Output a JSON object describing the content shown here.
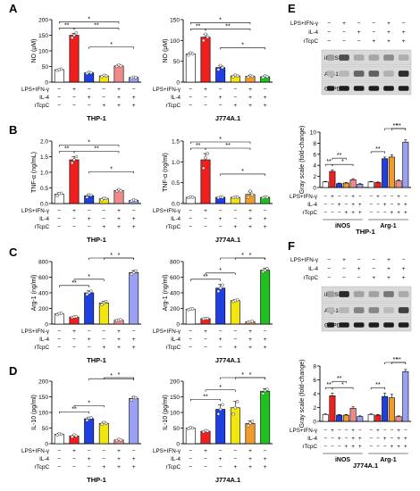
{
  "figure": {
    "colors": {
      "white": "#ffffff",
      "red": "#ef1f1f",
      "blue": "#1f3fe0",
      "yellow": "#f2e60f",
      "pink": "#f08a8a",
      "lightblue": "#5a78ea",
      "gold": "#f2bf0f",
      "green": "#20c020",
      "orange": "#f29a2a",
      "lavender": "#9aa0f4",
      "border": "#000000"
    },
    "pm": [
      "−",
      "+"
    ],
    "treatment_labels": [
      "LPS+IFN-γ",
      "IL-4",
      "rTcpC"
    ],
    "blot_labels": [
      "iNOS",
      "Arg-1",
      "GAPDH"
    ],
    "blot_ylabel": "Gray scale (fold-change)",
    "panels": [
      {
        "letter": "A"
      },
      {
        "letter": "B"
      },
      {
        "letter": "C"
      },
      {
        "letter": "D"
      },
      {
        "letter": "E",
        "cell": "THP-1",
        "group_labels": [
          "iNOS",
          "Arg-1"
        ]
      },
      {
        "letter": "F",
        "cell": "J774A.1",
        "group_labels": [
          "iNOS",
          "Arg-1"
        ]
      }
    ]
  },
  "chart_data": [
    {
      "panel": "A",
      "type": "bar",
      "cell": "THP-1",
      "palette": "thp",
      "ylabel": "NO (μM)",
      "ylim": [
        0,
        200
      ],
      "yticks": [
        0,
        50,
        100,
        150,
        200
      ],
      "values": [
        40,
        150,
        30,
        20,
        52,
        15
      ],
      "points": [
        [
          38,
          40,
          42
        ],
        [
          142,
          150,
          158
        ],
        [
          28,
          32,
          30
        ],
        [
          18,
          22,
          20
        ],
        [
          50,
          55,
          52
        ],
        [
          13,
          16,
          15
        ]
      ],
      "errors": [
        2,
        6,
        2,
        2,
        3,
        1
      ],
      "treatments": {
        "lps": [
          0,
          1,
          0,
          0,
          1,
          0
        ],
        "il4": [
          0,
          0,
          1,
          0,
          1,
          1
        ],
        "rtcpc": [
          0,
          0,
          0,
          1,
          1,
          1
        ]
      },
      "sig": [
        {
          "a": 0,
          "b": 1,
          "label": "**",
          "level": 0
        },
        {
          "a": 1,
          "b": 4,
          "label": "**",
          "level": 0
        },
        {
          "a": 0,
          "b": 4,
          "label": "*",
          "level": 1
        },
        {
          "a": 2,
          "b": 5,
          "label": "*",
          "level": 2
        }
      ]
    },
    {
      "panel": "A",
      "type": "bar",
      "cell": "J774A.1",
      "palette": "j774",
      "ylabel": "NO (μM)",
      "ylim": [
        0,
        150
      ],
      "yticks": [
        0,
        50,
        100,
        150
      ],
      "values": [
        68,
        108,
        35,
        15,
        14,
        13
      ],
      "points": [
        [
          65,
          70,
          68
        ],
        [
          100,
          115,
          108
        ],
        [
          30,
          40,
          35
        ],
        [
          13,
          17,
          15
        ],
        [
          12,
          16,
          14
        ],
        [
          11,
          15,
          13
        ]
      ],
      "errors": [
        3,
        7,
        5,
        2,
        2,
        2
      ],
      "treatments": {
        "lps": [
          0,
          1,
          0,
          0,
          1,
          0
        ],
        "il4": [
          0,
          0,
          1,
          0,
          1,
          1
        ],
        "rtcpc": [
          0,
          0,
          0,
          1,
          1,
          1
        ]
      },
      "sig": [
        {
          "a": 0,
          "b": 1,
          "label": "**",
          "level": 0
        },
        {
          "a": 1,
          "b": 4,
          "label": "**",
          "level": 0
        },
        {
          "a": 0,
          "b": 4,
          "label": "*",
          "level": 1
        },
        {
          "a": 2,
          "b": 5,
          "label": "*",
          "level": 2
        }
      ]
    },
    {
      "panel": "B",
      "type": "bar",
      "cell": "THP-1",
      "palette": "thp",
      "ylabel": "TNF-α (ng/mL)",
      "ylim": [
        0,
        2.0
      ],
      "yticks": [
        0.0,
        0.5,
        1.0,
        1.5,
        2.0
      ],
      "values": [
        0.3,
        1.4,
        0.25,
        0.15,
        0.42,
        0.1
      ],
      "points": [
        [
          0.25,
          0.32,
          0.33
        ],
        [
          1.3,
          1.4,
          1.5
        ],
        [
          0.2,
          0.28,
          0.27
        ],
        [
          0.12,
          0.17,
          0.16
        ],
        [
          0.4,
          0.45,
          0.41
        ],
        [
          0.08,
          0.12,
          0.1
        ]
      ],
      "errors": [
        0.05,
        0.1,
        0.05,
        0.03,
        0.03,
        0.02
      ],
      "treatments": {
        "lps": [
          0,
          1,
          0,
          0,
          1,
          0
        ],
        "il4": [
          0,
          0,
          1,
          0,
          1,
          1
        ],
        "rtcpc": [
          0,
          0,
          0,
          1,
          1,
          1
        ]
      },
      "sig": [
        {
          "a": 0,
          "b": 1,
          "label": "**",
          "level": 0
        },
        {
          "a": 1,
          "b": 4,
          "label": "**",
          "level": 0
        },
        {
          "a": 0,
          "b": 4,
          "label": "*",
          "level": 1
        },
        {
          "a": 2,
          "b": 5,
          "label": "*",
          "level": 2
        }
      ]
    },
    {
      "panel": "B",
      "type": "bar",
      "cell": "J774A.1",
      "palette": "j774",
      "ylabel": "TNF-α (ng/ml)",
      "ylim": [
        0,
        1.5
      ],
      "yticks": [
        0.0,
        0.5,
        1.0,
        1.5
      ],
      "values": [
        0.15,
        1.05,
        0.15,
        0.15,
        0.22,
        0.15
      ],
      "points": [
        [
          0.14,
          0.16,
          0.15
        ],
        [
          0.85,
          1.1,
          1.2
        ],
        [
          0.14,
          0.16,
          0.15
        ],
        [
          0.14,
          0.16,
          0.15
        ],
        [
          0.15,
          0.3,
          0.21
        ],
        [
          0.14,
          0.16,
          0.15
        ]
      ],
      "errors": [
        0.01,
        0.15,
        0.01,
        0.01,
        0.06,
        0.01
      ],
      "treatments": {
        "lps": [
          0,
          1,
          0,
          0,
          1,
          0
        ],
        "il4": [
          0,
          0,
          1,
          0,
          1,
          1
        ],
        "rtcpc": [
          0,
          0,
          0,
          1,
          1,
          1
        ]
      },
      "sig": [
        {
          "a": 0,
          "b": 1,
          "label": "**",
          "level": 0
        },
        {
          "a": 1,
          "b": 4,
          "label": "**",
          "level": 0
        },
        {
          "a": 0,
          "b": 4,
          "label": "*",
          "level": 1
        },
        {
          "a": 2,
          "b": 5,
          "label": "*",
          "level": 2
        }
      ]
    },
    {
      "panel": "C",
      "type": "bar",
      "cell": "THP-1",
      "palette": "thp",
      "ylabel": "Arg-1 (ng/ml)",
      "ylim": [
        0,
        800
      ],
      "yticks": [
        0,
        200,
        400,
        600,
        800
      ],
      "values": [
        130,
        90,
        400,
        270,
        50,
        660
      ],
      "points": [
        [
          120,
          135,
          138
        ],
        [
          85,
          92,
          95
        ],
        [
          380,
          400,
          420
        ],
        [
          250,
          270,
          290
        ],
        [
          45,
          52,
          55
        ],
        [
          640,
          660,
          680
        ]
      ],
      "errors": [
        10,
        5,
        25,
        20,
        5,
        25
      ],
      "treatments": {
        "lps": [
          0,
          1,
          0,
          0,
          1,
          0
        ],
        "il4": [
          0,
          0,
          1,
          0,
          1,
          1
        ],
        "rtcpc": [
          0,
          0,
          0,
          1,
          1,
          1
        ]
      },
      "sig": [
        {
          "a": 0,
          "b": 2,
          "label": "**",
          "level": 0
        },
        {
          "a": 1,
          "b": 3,
          "label": "*",
          "level": 1
        },
        {
          "a": 2,
          "b": 5,
          "label": "*",
          "level": 2
        },
        {
          "a": 3,
          "b": 5,
          "label": "*",
          "level": 3
        }
      ]
    },
    {
      "panel": "C",
      "type": "bar",
      "cell": "J774A.1",
      "palette": "j774",
      "ylabel": "Arg-1 (ng/ml)",
      "ylim": [
        0,
        800
      ],
      "yticks": [
        0,
        200,
        400,
        600,
        800
      ],
      "values": [
        190,
        70,
        460,
        300,
        30,
        690
      ],
      "points": [
        [
          185,
          192,
          195
        ],
        [
          65,
          72,
          73
        ],
        [
          420,
          460,
          500
        ],
        [
          290,
          300,
          310
        ],
        [
          25,
          30,
          35
        ],
        [
          670,
          690,
          710
        ]
      ],
      "errors": [
        8,
        5,
        45,
        12,
        5,
        25
      ],
      "treatments": {
        "lps": [
          0,
          1,
          0,
          0,
          1,
          0
        ],
        "il4": [
          0,
          0,
          1,
          0,
          1,
          1
        ],
        "rtcpc": [
          0,
          0,
          0,
          1,
          1,
          1
        ]
      },
      "sig": [
        {
          "a": 0,
          "b": 2,
          "label": "**",
          "level": 0
        },
        {
          "a": 1,
          "b": 3,
          "label": "*",
          "level": 1
        },
        {
          "a": 2,
          "b": 5,
          "label": "*",
          "level": 2
        },
        {
          "a": 3,
          "b": 5,
          "label": "*",
          "level": 3
        }
      ]
    },
    {
      "panel": "D",
      "type": "bar",
      "cell": "THP-1",
      "palette": "thp",
      "ylabel": "IL-10 (pg/ml)",
      "ylim": [
        0,
        200
      ],
      "yticks": [
        0,
        50,
        100,
        150,
        200
      ],
      "values": [
        30,
        25,
        80,
        65,
        12,
        145
      ],
      "points": [
        [
          28,
          32,
          30
        ],
        [
          22,
          28,
          25
        ],
        [
          75,
          82,
          83
        ],
        [
          62,
          68,
          65
        ],
        [
          10,
          14,
          12
        ],
        [
          140,
          148,
          147
        ]
      ],
      "errors": [
        3,
        3,
        5,
        4,
        2,
        6
      ],
      "treatments": {
        "lps": [
          0,
          1,
          0,
          0,
          1,
          0
        ],
        "il4": [
          0,
          0,
          1,
          0,
          1,
          1
        ],
        "rtcpc": [
          0,
          0,
          0,
          1,
          1,
          1
        ]
      },
      "sig": [
        {
          "a": 0,
          "b": 2,
          "label": "**",
          "level": 0
        },
        {
          "a": 1,
          "b": 3,
          "label": "*",
          "level": 1
        },
        {
          "a": 2,
          "b": 5,
          "label": "*",
          "level": 2
        },
        {
          "a": 3,
          "b": 5,
          "label": "*",
          "level": 3
        }
      ]
    },
    {
      "panel": "D",
      "type": "bar",
      "cell": "J774A.1",
      "palette": "j774",
      "ylabel": "IL-10 (pg/ml)",
      "ylim": [
        0,
        200
      ],
      "yticks": [
        0,
        50,
        100,
        150,
        200
      ],
      "values": [
        50,
        40,
        110,
        115,
        65,
        168
      ],
      "points": [
        [
          48,
          52,
          50
        ],
        [
          38,
          42,
          40
        ],
        [
          95,
          110,
          125
        ],
        [
          95,
          115,
          135
        ],
        [
          58,
          65,
          72
        ],
        [
          160,
          170,
          174
        ]
      ],
      "errors": [
        2,
        2,
        15,
        20,
        8,
        8
      ],
      "treatments": {
        "lps": [
          0,
          1,
          0,
          0,
          1,
          0
        ],
        "il4": [
          0,
          0,
          1,
          0,
          1,
          1
        ],
        "rtcpc": [
          0,
          0,
          0,
          1,
          1,
          1
        ]
      },
      "sig": [
        {
          "a": 0,
          "b": 2,
          "label": "**",
          "level": 0
        },
        {
          "a": 1,
          "b": 3,
          "label": "*",
          "level": 1
        },
        {
          "a": 2,
          "b": 5,
          "label": "*",
          "level": 2
        },
        {
          "a": 3,
          "b": 5,
          "label": "*",
          "level": 3
        }
      ]
    },
    {
      "panel": "E",
      "type": "bar",
      "cell": "THP-1",
      "palette": "blot",
      "ylabel": "Gray scale (fold-change)",
      "ylim": [
        0,
        10
      ],
      "yticks": [
        0,
        2,
        4,
        6,
        8,
        10
      ],
      "groups": [
        "iNOS",
        "Arg-1"
      ],
      "values": [
        [
          1.0,
          2.9,
          0.7,
          0.8,
          1.4,
          0.6
        ],
        [
          1.0,
          0.9,
          5.2,
          5.5,
          1.2,
          8.2
        ]
      ],
      "errors": [
        [
          0.1,
          0.3,
          0.1,
          0.1,
          0.2,
          0.1
        ],
        [
          0.1,
          0.1,
          0.3,
          0.4,
          0.2,
          0.4
        ]
      ],
      "treatments": {
        "lps": [
          0,
          1,
          0,
          0,
          1,
          0
        ],
        "il4": [
          0,
          0,
          1,
          0,
          1,
          1
        ],
        "rtcpc": [
          0,
          0,
          0,
          1,
          1,
          1
        ]
      },
      "sig": [
        {
          "g": 0,
          "a": 0,
          "b": 1,
          "label": "**",
          "level": 0
        },
        {
          "g": 0,
          "a": 1,
          "b": 4,
          "label": "*",
          "level": 0
        },
        {
          "g": 0,
          "a": 1,
          "b": 3,
          "label": "**",
          "level": 1
        },
        {
          "g": 1,
          "a": 0,
          "b": 2,
          "label": "**",
          "level": 0
        },
        {
          "g": 1,
          "a": 2,
          "b": 5,
          "label": "**",
          "level": 1
        },
        {
          "g": 1,
          "a": 3,
          "b": 5,
          "label": "**",
          "level": 2
        }
      ]
    },
    {
      "panel": "F",
      "type": "bar",
      "cell": "J774A.1",
      "palette": "blot",
      "ylabel": "Gray scale (fold-change)",
      "ylim": [
        0,
        8
      ],
      "yticks": [
        0,
        2,
        4,
        6,
        8
      ],
      "groups": [
        "iNOS",
        "Arg-1"
      ],
      "values": [
        [
          1.0,
          3.7,
          0.9,
          0.9,
          1.9,
          0.7
        ],
        [
          1.0,
          0.9,
          3.6,
          3.4,
          0.7,
          7.2
        ]
      ],
      "errors": [
        [
          0.1,
          0.4,
          0.1,
          0.1,
          0.2,
          0.1
        ],
        [
          0.1,
          0.1,
          0.5,
          0.5,
          0.1,
          0.3
        ]
      ],
      "treatments": {
        "lps": [
          0,
          1,
          0,
          0,
          1,
          0
        ],
        "il4": [
          0,
          0,
          1,
          0,
          1,
          1
        ],
        "rtcpc": [
          0,
          0,
          0,
          1,
          1,
          1
        ]
      },
      "sig": [
        {
          "g": 0,
          "a": 0,
          "b": 1,
          "label": "**",
          "level": 0
        },
        {
          "g": 0,
          "a": 1,
          "b": 4,
          "label": "*",
          "level": 0
        },
        {
          "g": 0,
          "a": 1,
          "b": 3,
          "label": "**",
          "level": 1
        },
        {
          "g": 1,
          "a": 0,
          "b": 2,
          "label": "**",
          "level": 0
        },
        {
          "g": 1,
          "a": 2,
          "b": 5,
          "label": "**",
          "level": 1
        },
        {
          "g": 1,
          "a": 3,
          "b": 5,
          "label": "**",
          "level": 2
        }
      ]
    }
  ]
}
